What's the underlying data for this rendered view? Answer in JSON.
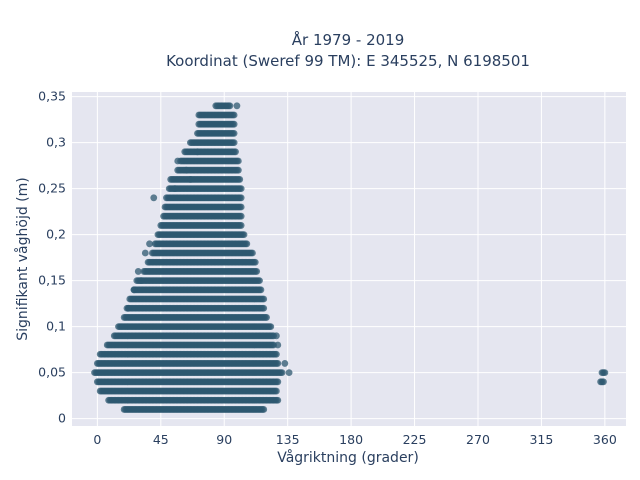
{
  "chart_data": {
    "type": "scatter",
    "title_lines": [
      "År 1979 - 2019",
      "Koordinat (Sweref 99 TM): E 345525, N 6198501"
    ],
    "xlabel": "Vågriktning (grader)",
    "ylabel": "Signifikant våghöjd (m)",
    "xlim": [
      -18,
      375
    ],
    "ylim": [
      -0.008,
      0.355
    ],
    "x_ticks": [
      0,
      45,
      90,
      135,
      180,
      225,
      270,
      315,
      360
    ],
    "x_tick_labels": [
      "0",
      "45",
      "90",
      "135",
      "180",
      "225",
      "270",
      "315",
      "360"
    ],
    "y_ticks": [
      0,
      0.05,
      0.1,
      0.15,
      0.2,
      0.25,
      0.3,
      0.35
    ],
    "y_tick_labels": [
      "0",
      "0,05",
      "0,1",
      "0,15",
      "0,2",
      "0,25",
      "0,3",
      "0,35"
    ],
    "grid": true,
    "legend": "none",
    "marker_color": "#2e5870",
    "plot_background": "#e5e6f0",
    "envelope_description_values": {
      "height_step_m": 0.01,
      "direction_step_deg": 1,
      "direction_range_by_height": [
        {
          "h": 0.01,
          "xmin": 19,
          "xmax": 118
        },
        {
          "h": 0.02,
          "xmin": 8,
          "xmax": 128
        },
        {
          "h": 0.03,
          "xmin": 2,
          "xmax": 127
        },
        {
          "h": 0.04,
          "xmin": 0,
          "xmax": 128
        },
        {
          "h": 0.05,
          "xmin": -2,
          "xmax": 131
        },
        {
          "h": 0.06,
          "xmin": 0,
          "xmax": 128
        },
        {
          "h": 0.07,
          "xmin": 2,
          "xmax": 127
        },
        {
          "h": 0.08,
          "xmin": 7,
          "xmax": 125
        },
        {
          "h": 0.09,
          "xmin": 12,
          "xmax": 125
        },
        {
          "h": 0.1,
          "xmin": 15,
          "xmax": 123
        },
        {
          "h": 0.11,
          "xmin": 19,
          "xmax": 120
        },
        {
          "h": 0.12,
          "xmin": 21,
          "xmax": 118
        },
        {
          "h": 0.13,
          "xmin": 23,
          "xmax": 118
        },
        {
          "h": 0.14,
          "xmin": 26,
          "xmax": 116
        },
        {
          "h": 0.15,
          "xmin": 28,
          "xmax": 115
        },
        {
          "h": 0.16,
          "xmin": 33,
          "xmax": 113
        },
        {
          "h": 0.17,
          "xmin": 36,
          "xmax": 112
        },
        {
          "h": 0.18,
          "xmin": 39,
          "xmax": 110
        },
        {
          "h": 0.19,
          "xmin": 41,
          "xmax": 106
        },
        {
          "h": 0.2,
          "xmin": 43,
          "xmax": 104
        },
        {
          "h": 0.21,
          "xmin": 45,
          "xmax": 102
        },
        {
          "h": 0.22,
          "xmin": 47,
          "xmax": 102
        },
        {
          "h": 0.23,
          "xmin": 48,
          "xmax": 102
        },
        {
          "h": 0.24,
          "xmin": 49,
          "xmax": 102
        },
        {
          "h": 0.25,
          "xmin": 51,
          "xmax": 102
        },
        {
          "h": 0.26,
          "xmin": 52,
          "xmax": 101
        },
        {
          "h": 0.27,
          "xmin": 57,
          "xmax": 100
        },
        {
          "h": 0.28,
          "xmin": 59,
          "xmax": 100
        },
        {
          "h": 0.29,
          "xmin": 62,
          "xmax": 98
        },
        {
          "h": 0.3,
          "xmin": 66,
          "xmax": 97
        },
        {
          "h": 0.31,
          "xmin": 71,
          "xmax": 97
        },
        {
          "h": 0.32,
          "xmin": 72,
          "xmax": 97
        },
        {
          "h": 0.33,
          "xmin": 72,
          "xmax": 97
        },
        {
          "h": 0.34,
          "xmin": 84,
          "xmax": 94
        }
      ],
      "scattered_points": [
        {
          "x": 40,
          "y": 0.24
        },
        {
          "x": 31,
          "y": 0.15
        },
        {
          "x": 29,
          "y": 0.16
        },
        {
          "x": 26,
          "y": 0.14
        },
        {
          "x": 22,
          "y": 0.12
        },
        {
          "x": 136,
          "y": 0.05
        },
        {
          "x": 133,
          "y": 0.06
        },
        {
          "x": 128,
          "y": 0.08
        },
        {
          "x": 127,
          "y": 0.09
        },
        {
          "x": 66,
          "y": 0.26
        },
        {
          "x": 63,
          "y": 0.27
        },
        {
          "x": 57,
          "y": 0.28
        },
        {
          "x": 99,
          "y": 0.34
        },
        {
          "x": 71,
          "y": 0.29
        },
        {
          "x": 55,
          "y": 0.25
        },
        {
          "x": 37,
          "y": 0.19
        },
        {
          "x": 34,
          "y": 0.18
        },
        {
          "x": 358,
          "y": 0.05
        },
        {
          "x": 359,
          "y": 0.05
        },
        {
          "x": 360,
          "y": 0.05
        },
        {
          "x": 357,
          "y": 0.04
        },
        {
          "x": 358,
          "y": 0.04
        },
        {
          "x": 359,
          "y": 0.04
        }
      ]
    }
  }
}
